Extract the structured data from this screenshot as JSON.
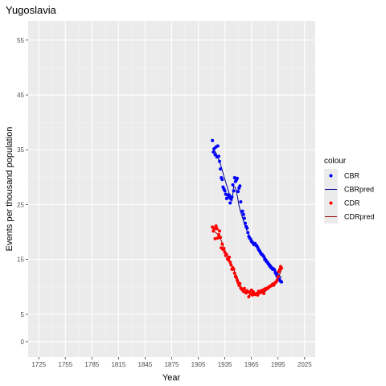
{
  "chart_data": {
    "type": "scatter",
    "title": "Yugoslavia",
    "xlabel": "Year",
    "ylabel": "Events per thousand population",
    "xlim": [
      1713,
      2037
    ],
    "ylim": [
      -2.8,
      58.5
    ],
    "x_ticks": [
      1725,
      1755,
      1785,
      1815,
      1845,
      1875,
      1905,
      1935,
      1965,
      1995,
      2025
    ],
    "y_ticks": [
      0,
      5,
      15,
      25,
      35,
      45,
      55
    ],
    "y_minor_ticks": [
      2.5,
      10,
      20,
      30,
      40,
      50
    ],
    "x_minor_ticks": [
      1740,
      1770,
      1800,
      1830,
      1860,
      1890,
      1920,
      1950,
      1980,
      2010
    ],
    "grid": true,
    "legend_position": "right",
    "legend_title": "colour",
    "legend": [
      {
        "label": "CBR",
        "kind": "point",
        "color": "#0000ff"
      },
      {
        "label": "CBRpred",
        "kind": "line",
        "color": "#00008b"
      },
      {
        "label": "CDR",
        "kind": "point",
        "color": "#ff0000"
      },
      {
        "label": "CDRpred",
        "kind": "line",
        "color": "#8b0000"
      }
    ],
    "series": [
      {
        "name": "CBR",
        "kind": "points",
        "color": "#0000ff",
        "x": [
          1921,
          1922,
          1923,
          1924,
          1925,
          1926,
          1927,
          1928,
          1929,
          1930,
          1931,
          1932,
          1933,
          1934,
          1935,
          1936,
          1937,
          1938,
          1939,
          1940,
          1941,
          1942,
          1943,
          1944,
          1945,
          1946,
          1947,
          1948,
          1949,
          1950,
          1951,
          1952,
          1953,
          1954,
          1955,
          1956,
          1957,
          1958,
          1959,
          1960,
          1961,
          1962,
          1963,
          1964,
          1965,
          1966,
          1967,
          1968,
          1969,
          1970,
          1971,
          1972,
          1973,
          1974,
          1975,
          1976,
          1977,
          1978,
          1979,
          1980,
          1981,
          1982,
          1983,
          1984,
          1985,
          1986,
          1987,
          1988,
          1989,
          1990,
          1991,
          1992,
          1993,
          1994,
          1995,
          1996,
          1997,
          1998,
          1999
        ],
        "y": [
          36.7,
          34.6,
          35.2,
          34.1,
          35.5,
          33.7,
          35.7,
          33.8,
          32.9,
          31.5,
          29.9,
          29.6,
          28.2,
          27.8,
          27.5,
          26.9,
          26.1,
          26.8,
          26.3,
          26.7,
          25.3,
          26.0,
          26.4,
          28.6,
          27.5,
          29.9,
          29.2,
          29.5,
          29.8,
          27.4,
          28.0,
          28.4,
          25.5,
          23.7,
          23.8,
          23.2,
          22.5,
          21.6,
          21.0,
          20.7,
          19.9,
          19.2,
          18.9,
          18.7,
          18.3,
          18.1,
          17.9,
          17.7,
          17.9,
          17.6,
          17.5,
          17.2,
          16.8,
          16.6,
          16.3,
          16.0,
          15.9,
          15.7,
          15.5,
          15.0,
          14.9,
          14.6,
          14.5,
          14.2,
          14.0,
          13.7,
          13.6,
          13.4,
          13.2,
          13.3,
          13.1,
          12.6,
          12.3,
          11.9,
          11.8,
          11.5,
          11.2,
          11.0,
          10.9
        ]
      },
      {
        "name": "CBRpred",
        "kind": "line",
        "color": "#00008b",
        "x": [
          1921,
          1925,
          1930,
          1935,
          1940,
          1943,
          1945,
          1947,
          1949,
          1951,
          1953,
          1955,
          1957,
          1960,
          1963,
          1966,
          1969,
          1972,
          1975,
          1978,
          1981,
          1984,
          1987,
          1990,
          1993,
          1996,
          1999
        ],
        "y": [
          35.3,
          34.4,
          32.4,
          29.6,
          27.0,
          25.6,
          28.3,
          28.1,
          26.7,
          24.8,
          23.6,
          22.6,
          21.5,
          20.2,
          19.2,
          18.5,
          17.8,
          17.2,
          16.6,
          16.0,
          15.3,
          14.6,
          14.0,
          13.4,
          12.8,
          12.2,
          11.6
        ]
      },
      {
        "name": "CDR",
        "kind": "points",
        "color": "#ff0000",
        "x": [
          1921,
          1922,
          1923,
          1924,
          1925,
          1926,
          1927,
          1928,
          1929,
          1930,
          1931,
          1932,
          1933,
          1934,
          1935,
          1936,
          1937,
          1938,
          1939,
          1940,
          1941,
          1942,
          1943,
          1944,
          1945,
          1946,
          1947,
          1948,
          1949,
          1950,
          1951,
          1952,
          1953,
          1954,
          1955,
          1956,
          1957,
          1958,
          1959,
          1960,
          1961,
          1962,
          1963,
          1964,
          1965,
          1966,
          1967,
          1968,
          1969,
          1970,
          1971,
          1972,
          1973,
          1974,
          1975,
          1976,
          1977,
          1978,
          1979,
          1980,
          1981,
          1982,
          1983,
          1984,
          1985,
          1986,
          1987,
          1988,
          1989,
          1990,
          1991,
          1992,
          1993,
          1994,
          1995,
          1996,
          1997,
          1998,
          1999
        ],
        "y": [
          20.9,
          20.2,
          20.6,
          18.8,
          21.1,
          20.6,
          18.9,
          19.5,
          20.2,
          19.0,
          17.1,
          17.8,
          16.8,
          17.0,
          16.3,
          15.7,
          15.9,
          15.1,
          14.9,
          15.4,
          14.5,
          14.0,
          13.2,
          13.5,
          13.2,
          12.5,
          11.9,
          11.7,
          11.2,
          10.8,
          10.3,
          10.6,
          9.8,
          9.6,
          9.4,
          9.2,
          9.7,
          9.0,
          8.9,
          9.3,
          9.1,
          8.2,
          9.0,
          8.7,
          9.4,
          8.5,
          9.1,
          8.8,
          8.6,
          8.7,
          8.8,
          8.5,
          9.2,
          8.9,
          9.1,
          9.3,
          9.0,
          9.4,
          8.8,
          9.6,
          9.5,
          9.7,
          9.8,
          9.8,
          10.0,
          10.1,
          10.2,
          10.3,
          10.5,
          10.3,
          10.6,
          10.8,
          10.9,
          11.2,
          11.8,
          12.8,
          13.2,
          13.7,
          13.4
        ]
      },
      {
        "name": "CDRpred",
        "kind": "line",
        "color": "#8b0000",
        "x": [
          1921,
          1924,
          1927,
          1930,
          1933,
          1936,
          1939,
          1942,
          1945,
          1948,
          1951,
          1954,
          1957,
          1960,
          1963,
          1966,
          1969,
          1972,
          1975,
          1978,
          1981,
          1984,
          1987,
          1990,
          1993,
          1996,
          1999
        ],
        "y": [
          20.2,
          20.0,
          19.6,
          18.8,
          17.6,
          16.3,
          15.3,
          14.3,
          13.1,
          12.1,
          10.9,
          9.6,
          9.2,
          9.0,
          8.9,
          8.8,
          8.7,
          8.7,
          8.8,
          9.0,
          9.2,
          9.6,
          10.0,
          10.4,
          10.8,
          11.8,
          13.3
        ]
      }
    ]
  }
}
